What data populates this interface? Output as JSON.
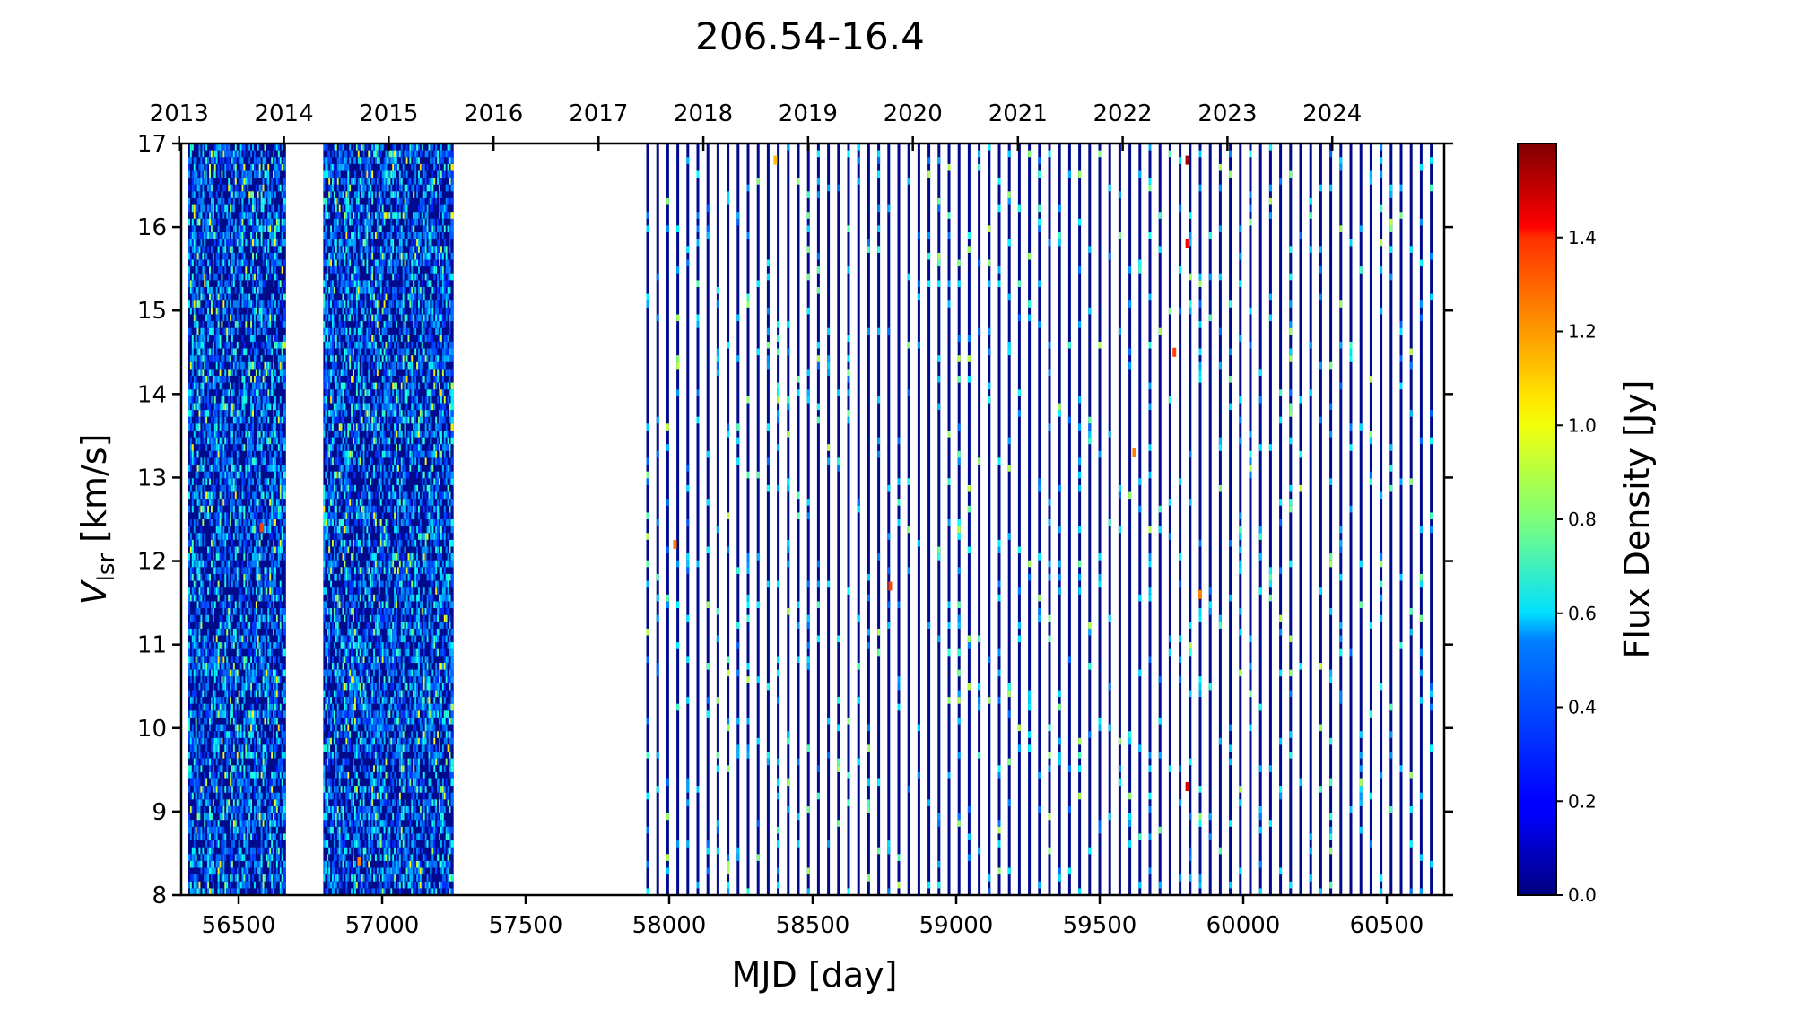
{
  "chart_data": {
    "type": "heatmap",
    "title": "206.54-16.4",
    "xlabel": "MJD [day]",
    "ylabel_main": "V",
    "ylabel_sub": "lsr",
    "ylabel_rest": " [km/s]",
    "xlim": [
      56300,
      60700
    ],
    "ylim": [
      8,
      17
    ],
    "x_ticks": [
      56500,
      57000,
      57500,
      58000,
      58500,
      59000,
      59500,
      60000,
      60500
    ],
    "y_ticks": [
      8,
      9,
      10,
      11,
      12,
      13,
      14,
      15,
      16,
      17
    ],
    "top_axis_years": [
      "2013",
      "2014",
      "2015",
      "2016",
      "2017",
      "2018",
      "2019",
      "2020",
      "2021",
      "2022",
      "2023",
      "2024"
    ],
    "top_axis_year_mjd": [
      56293,
      56658,
      57023,
      57388,
      57754,
      58119,
      58484,
      58849,
      59215,
      59580,
      59945,
      60310
    ],
    "colorbar": {
      "label": "Flux Density [Jy]",
      "min": 0.0,
      "max": 1.6,
      "ticks": [
        "0.0",
        "0.2",
        "0.4",
        "0.6",
        "0.8",
        "1.0",
        "1.2",
        "1.4"
      ],
      "colormap": "jet"
    },
    "dense_periods": [
      {
        "start_mjd": 56330,
        "end_mjd": 56665,
        "cadence_days": 6
      },
      {
        "start_mjd": 56800,
        "end_mjd": 57245,
        "cadence_days": 6
      }
    ],
    "sparse_period": {
      "start_mjd": 57925,
      "end_mjd": 60670,
      "cadence_days": 35
    },
    "hotspots": [
      {
        "mjd": 58020,
        "vlsr": 12.2,
        "flux": 1.2
      },
      {
        "mjd": 58370,
        "vlsr": 16.8,
        "flux": 1.1
      },
      {
        "mjd": 58770,
        "vlsr": 11.7,
        "flux": 1.3
      },
      {
        "mjd": 59620,
        "vlsr": 13.3,
        "flux": 1.2
      },
      {
        "mjd": 59760,
        "vlsr": 14.5,
        "flux": 1.3
      },
      {
        "mjd": 59805,
        "vlsr": 16.8,
        "flux": 1.55
      },
      {
        "mjd": 59805,
        "vlsr": 15.8,
        "flux": 1.4
      },
      {
        "mjd": 59805,
        "vlsr": 9.3,
        "flux": 1.45
      },
      {
        "mjd": 59850,
        "vlsr": 11.6,
        "flux": 1.2
      },
      {
        "mjd": 56580,
        "vlsr": 12.4,
        "flux": 1.3
      },
      {
        "mjd": 56920,
        "vlsr": 8.4,
        "flux": 1.2
      }
    ]
  }
}
